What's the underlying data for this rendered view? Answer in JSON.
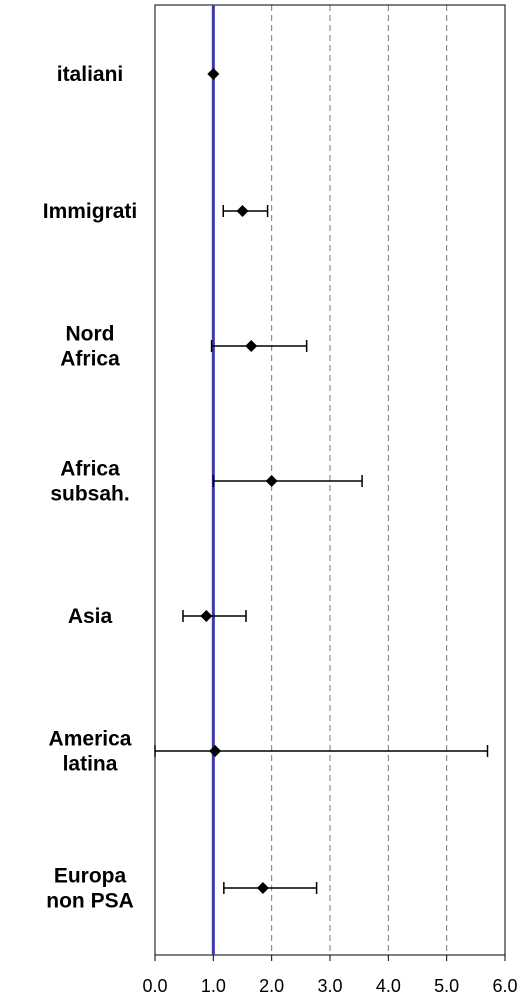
{
  "chart_data": {
    "type": "forest",
    "title": "",
    "xlabel": "",
    "ylabel": "",
    "xlim": [
      0,
      6
    ],
    "x_ticks": [
      "0.0",
      "1.0",
      "2.0",
      "3.0",
      "4.0",
      "5.0",
      "6.0"
    ],
    "grid": "vertical dashed",
    "reference_line": {
      "x": 1.0,
      "color": "#3a3aa8"
    },
    "colors": {
      "point": "#000000",
      "whisker": "#000000",
      "grid": "#7a7a7a",
      "reference": "#3a3aa8"
    },
    "categories": [
      {
        "label": [
          "italiani"
        ],
        "value": 1.0,
        "low": null,
        "high": null
      },
      {
        "label": [
          "Immigrati"
        ],
        "value": 1.5,
        "low": 1.17,
        "high": 1.93
      },
      {
        "label": [
          "Nord",
          "Africa"
        ],
        "value": 1.65,
        "low": 0.97,
        "high": 2.6
      },
      {
        "label": [
          "Africa",
          "subsah."
        ],
        "value": 2.0,
        "low": 1.0,
        "high": 3.55
      },
      {
        "label": [
          "Asia"
        ],
        "value": 0.88,
        "low": 0.48,
        "high": 1.56
      },
      {
        "label": [
          "America",
          "latina"
        ],
        "value": 1.03,
        "low": 0.0,
        "high": 5.7
      },
      {
        "label": [
          "Europa",
          "non PSA"
        ],
        "value": 1.85,
        "low": 1.18,
        "high": 2.77
      }
    ]
  }
}
